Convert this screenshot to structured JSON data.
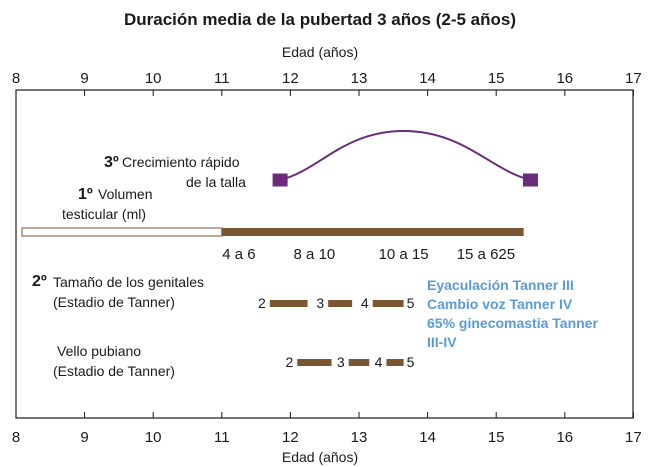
{
  "title": "Duración media de la pubertad 3 años (2-5 años)",
  "axis_top_label": "Edad (años)",
  "axis_bottom_label": "Edad (años)",
  "ticks": [
    "8",
    "9",
    "10",
    "11",
    "12",
    "13",
    "14",
    "15",
    "16",
    "17"
  ],
  "growth": {
    "number": "3º",
    "line1": "Crecimiento rápido",
    "line2": "de la talla",
    "start_age": 11.85,
    "end_age": 15.5,
    "peak_age": 13.65
  },
  "testicular": {
    "number": "1º",
    "line1": "Volumen",
    "line2": "testicular (ml)",
    "start_age": 11.0,
    "end_age": 15.4,
    "values": [
      {
        "label": "4 a 6",
        "age": 11.25
      },
      {
        "label": "8 a 10",
        "age": 12.35
      },
      {
        "label": "10 a 15",
        "age": 13.65
      },
      {
        "label": "15 a 625",
        "age": 14.85
      }
    ]
  },
  "genitals": {
    "number": "2º",
    "line1": "Tamaño de los genitales",
    "line2": "(Estadio de Tanner)",
    "stages": [
      {
        "label": "2",
        "start": 11.7,
        "end": 12.25
      },
      {
        "label": "3",
        "start": 12.55,
        "end": 12.9
      },
      {
        "label": "4",
        "start": 13.2,
        "end": 13.65
      }
    ],
    "final_label": "5"
  },
  "pubic": {
    "line1": "Vello pubiano",
    "line2": "(Estadio de Tanner)",
    "stages": [
      {
        "label": "2",
        "start": 12.1,
        "end": 12.6
      },
      {
        "label": "3",
        "start": 12.85,
        "end": 13.15
      },
      {
        "label": "4",
        "start": 13.4,
        "end": 13.65
      }
    ],
    "final_label": "5"
  },
  "note": {
    "lines": [
      "Eyaculación Tanner III",
      "Cambio voz Tanner IV",
      "65% ginecomastia Tanner",
      "III-IV"
    ]
  },
  "colors": {
    "title": "#c8102e",
    "number": "#a07a3a",
    "bar": "#7b5632",
    "curve": "#6a2c7a",
    "note": "#5b9bd5",
    "frame": "#1a1a1a"
  }
}
